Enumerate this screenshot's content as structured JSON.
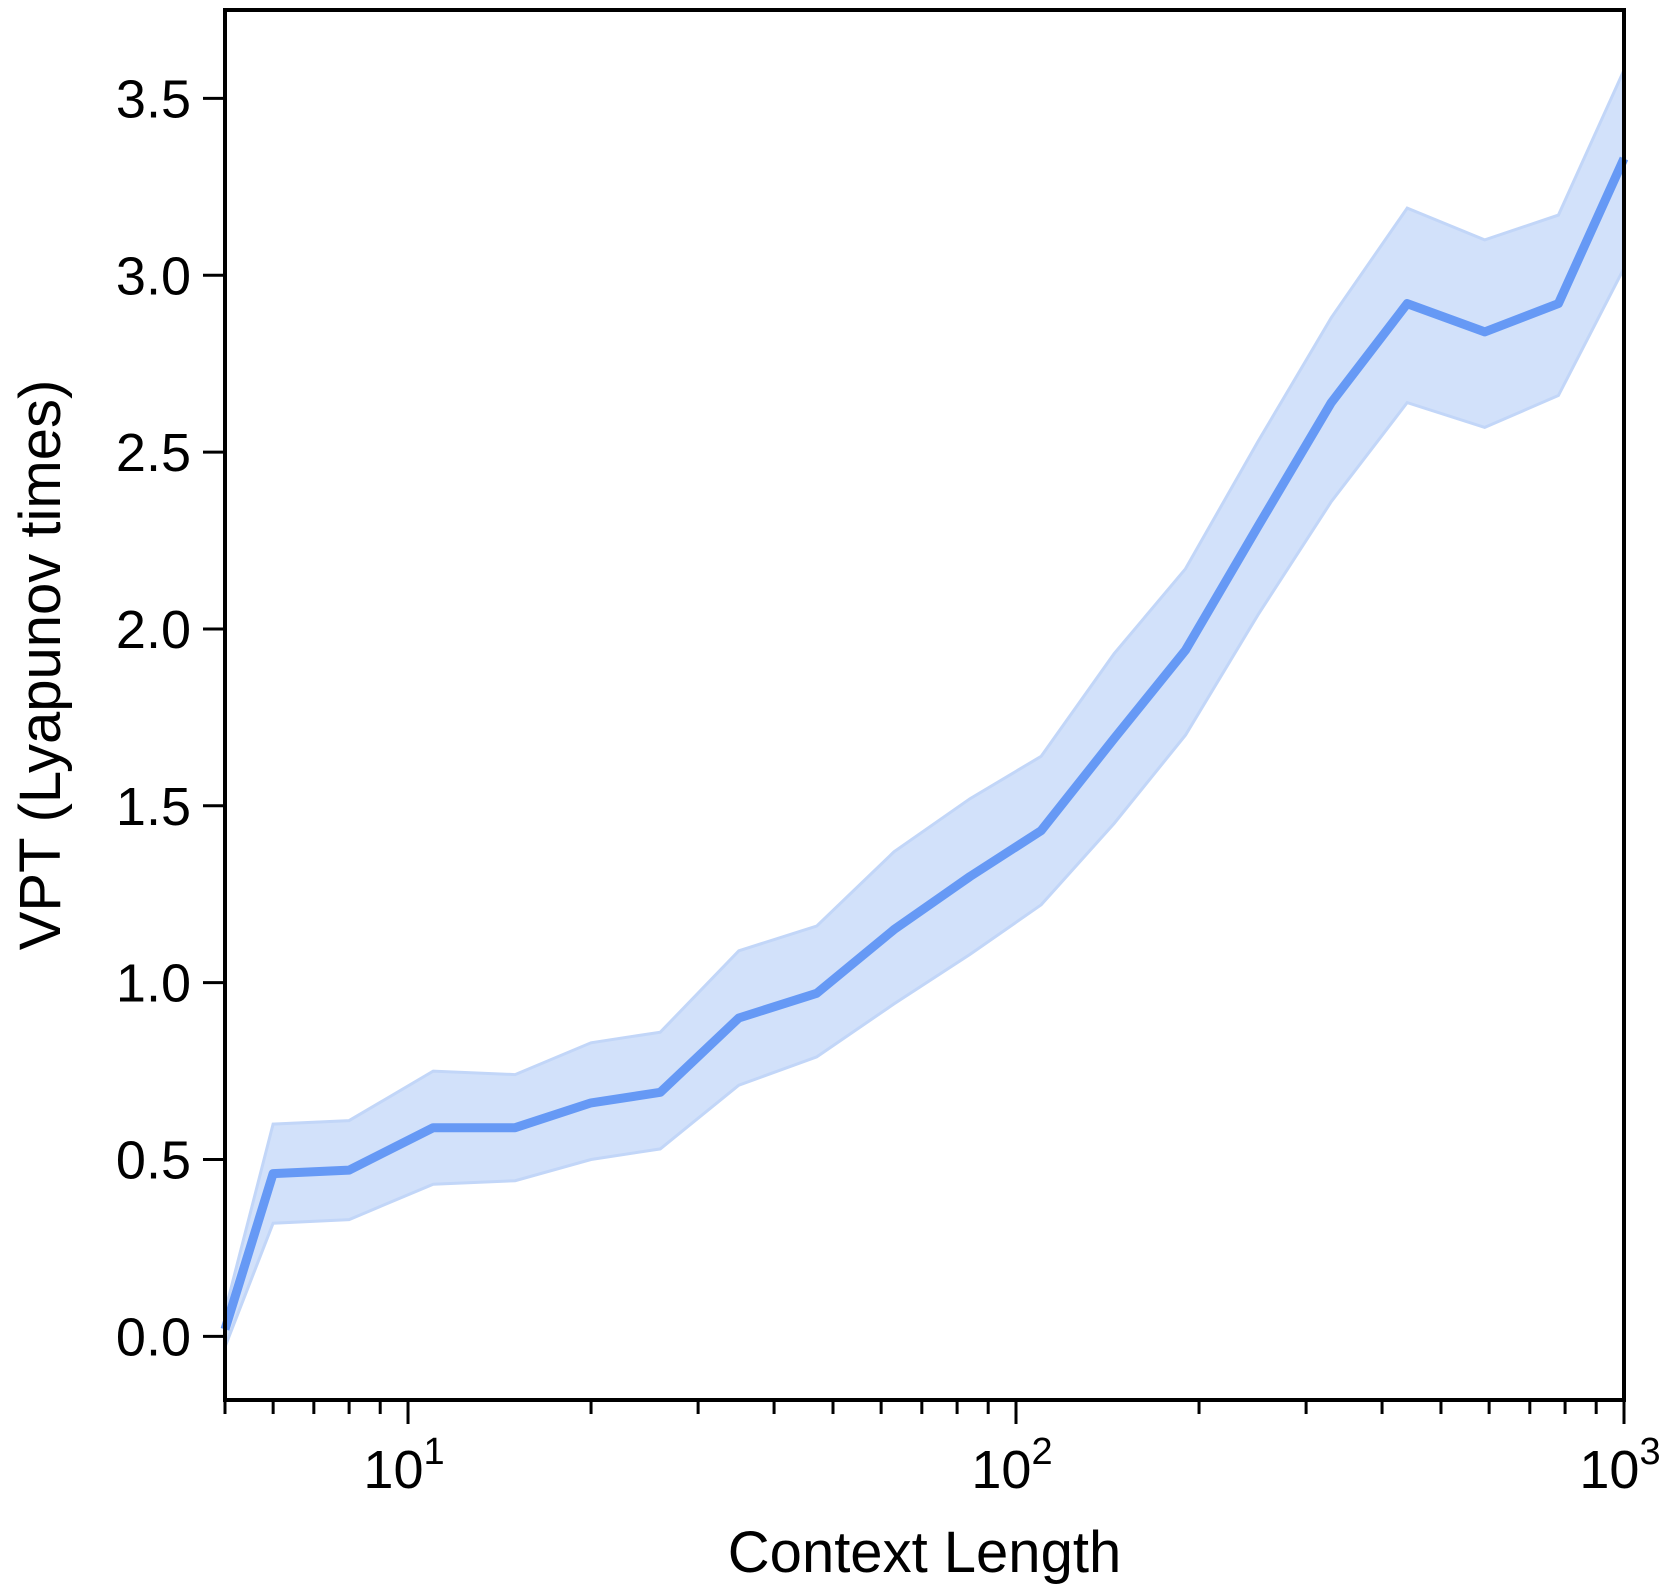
{
  "chart_data": {
    "type": "line",
    "xlabel": "Context Length",
    "ylabel": "VPT (Lyapunov times)",
    "xscale": "log",
    "xlim": [
      5,
      1000
    ],
    "ylim": [
      -0.18,
      3.75
    ],
    "x_ticks": [
      {
        "value": 10,
        "base": "10",
        "exp": "1"
      },
      {
        "value": 100,
        "base": "10",
        "exp": "2"
      },
      {
        "value": 1000,
        "base": "10",
        "exp": "3"
      }
    ],
    "x_minor_ticks": [
      5,
      6,
      7,
      8,
      9,
      20,
      30,
      40,
      50,
      60,
      70,
      80,
      90,
      200,
      300,
      400,
      500,
      600,
      700,
      800,
      900
    ],
    "y_ticks": [
      "0.0",
      "0.5",
      "1.0",
      "1.5",
      "2.0",
      "2.5",
      "3.0",
      "3.5"
    ],
    "grid": false,
    "colors": {
      "line": "#6699f5",
      "band": "#d2e1fa",
      "band_edge": "#c2d6f8",
      "axes": "#000000"
    },
    "series": [
      {
        "x": [
          5,
          6,
          8,
          11,
          15,
          20,
          26,
          35,
          47,
          63,
          84,
          110,
          145,
          190,
          250,
          330,
          440,
          590,
          780,
          1000
        ],
        "y": [
          0.02,
          0.46,
          0.47,
          0.59,
          0.59,
          0.66,
          0.69,
          0.9,
          0.97,
          1.15,
          1.3,
          1.43,
          1.69,
          1.94,
          2.29,
          2.64,
          2.92,
          2.84,
          2.92,
          3.33
        ],
        "lower": [
          -0.03,
          0.32,
          0.33,
          0.43,
          0.44,
          0.5,
          0.53,
          0.71,
          0.79,
          0.94,
          1.08,
          1.22,
          1.45,
          1.7,
          2.04,
          2.36,
          2.64,
          2.57,
          2.66,
          3.02
        ],
        "upper": [
          0.07,
          0.6,
          0.61,
          0.75,
          0.74,
          0.83,
          0.86,
          1.09,
          1.16,
          1.37,
          1.52,
          1.64,
          1.93,
          2.17,
          2.53,
          2.88,
          3.19,
          3.1,
          3.17,
          3.58
        ]
      }
    ]
  }
}
